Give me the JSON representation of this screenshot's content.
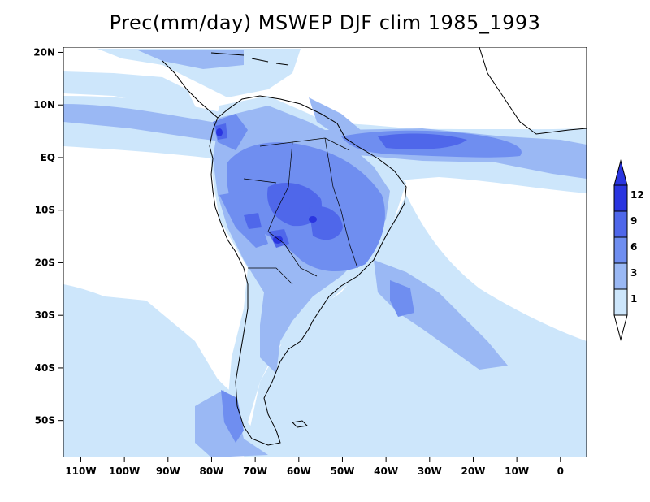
{
  "title": "Prec(mm/day) MSWEP DJF clim 1985_1993",
  "colors": {
    "level_0": "#ffffff",
    "level_1": "#cde6fb",
    "level_3": "#9ab8f4",
    "level_6": "#6f8ef0",
    "level_9": "#4f67ea",
    "level_12": "#2a35e0",
    "coast": "#000000"
  },
  "x_axis": {
    "ticks": [
      "110W",
      "100W",
      "90W",
      "80W",
      "70W",
      "60W",
      "50W",
      "40W",
      "30W",
      "20W",
      "10W",
      "0"
    ],
    "values": [
      -110,
      -100,
      -90,
      -80,
      -70,
      -60,
      -50,
      -40,
      -30,
      -20,
      -10,
      0
    ],
    "range": [
      -114,
      6
    ]
  },
  "y_axis": {
    "ticks": [
      "20N",
      "10N",
      "EQ",
      "10S",
      "20S",
      "30S",
      "40S",
      "50S"
    ],
    "values": [
      20,
      10,
      0,
      -10,
      -20,
      -30,
      -40,
      -50
    ],
    "range": [
      -57,
      21
    ]
  },
  "colorbar": {
    "labels": [
      "1",
      "3",
      "6",
      "9",
      "12"
    ],
    "extend": "both",
    "orientation": "vertical",
    "placement": "right"
  }
}
